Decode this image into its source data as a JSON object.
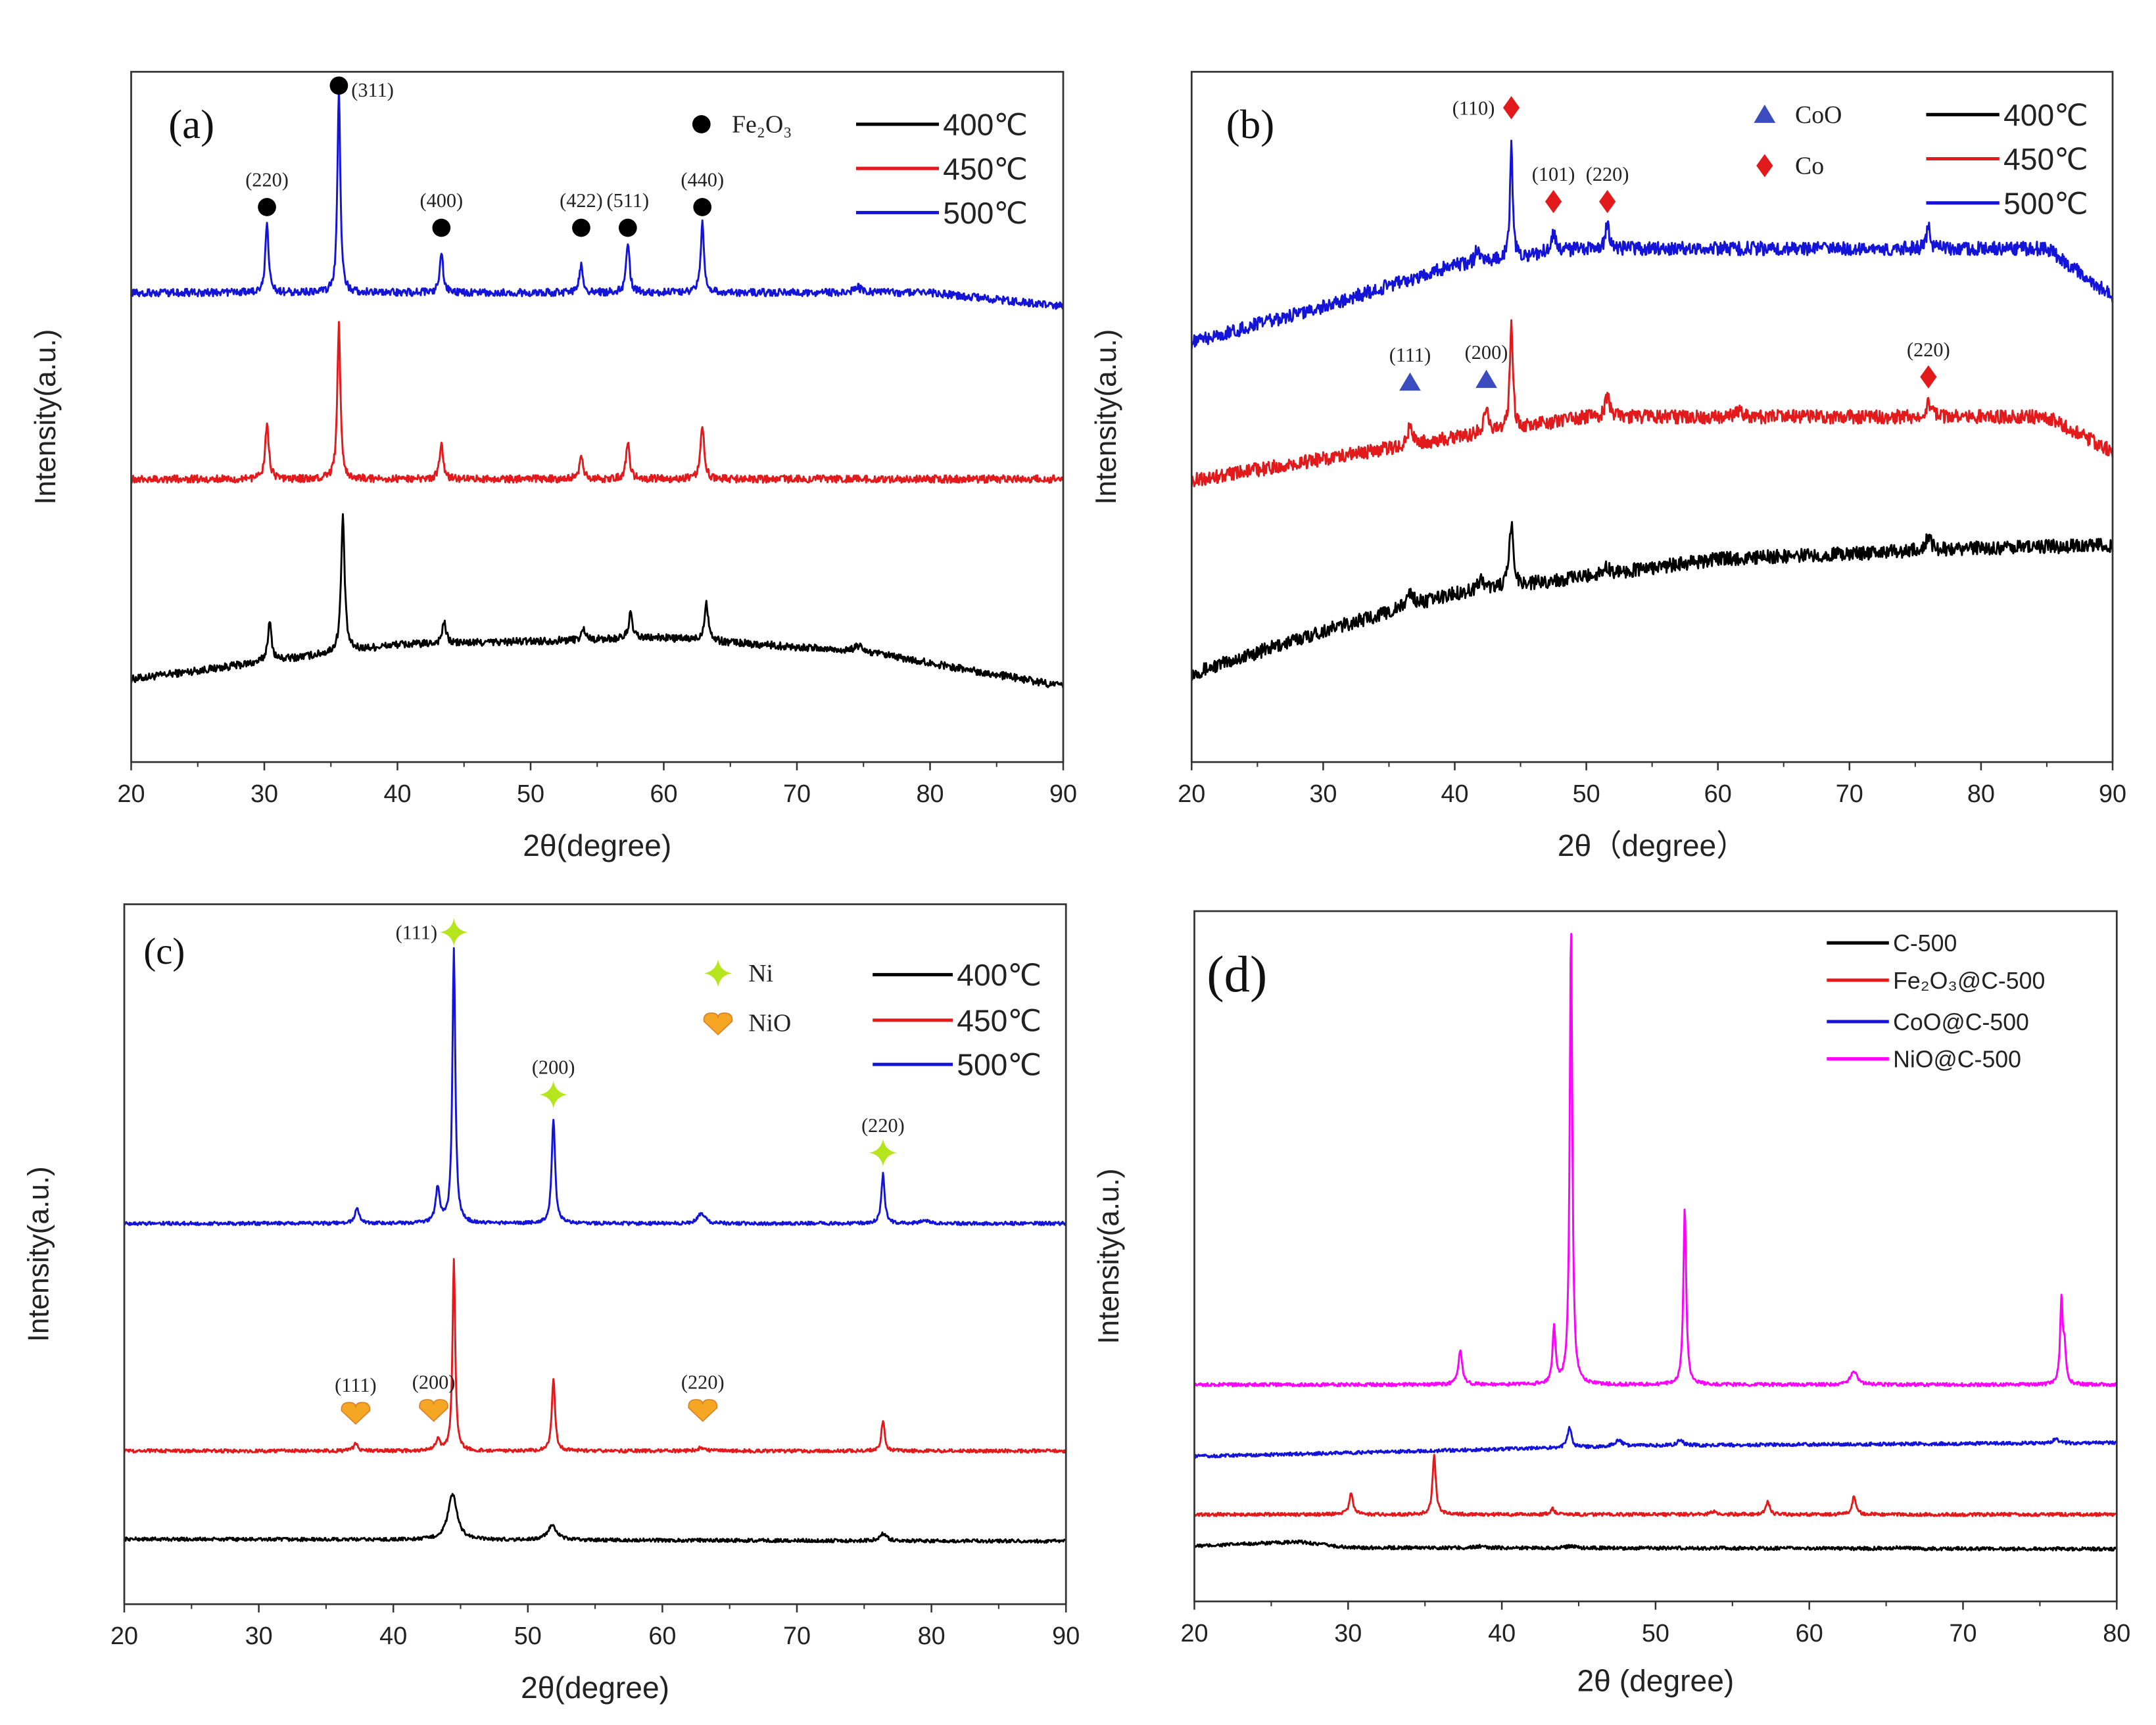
{
  "chart_data": [
    {
      "type": "line",
      "panel_label": "(a)",
      "xlabel": "2θ(degree)",
      "ylabel": "Intensity(a.u.)",
      "xlim": [
        20,
        90
      ],
      "ylim": [
        0,
        100
      ],
      "xticks": [
        20,
        30,
        40,
        50,
        60,
        70,
        80,
        90
      ],
      "legend_position": "top-right",
      "phase_legend": [
        {
          "symbol": "dot",
          "color": "#000000",
          "label": "Fe₂O₃"
        }
      ],
      "series": [
        {
          "name": "400℃",
          "color": "#000000",
          "baseline": [
            [
              20,
              12
            ],
            [
              40,
              17
            ],
            [
              60,
              18
            ],
            [
              75,
              16
            ],
            [
              90,
              11
            ]
          ],
          "peaks": [
            [
              30.4,
              5.5,
              0.18
            ],
            [
              35.9,
              19.5,
              0.16
            ],
            [
              43.5,
              3,
              0.18
            ],
            [
              54,
              1.5,
              0.2
            ],
            [
              57.5,
              3.5,
              0.18
            ],
            [
              63.2,
              5.5,
              0.18
            ],
            [
              74.6,
              0.8,
              0.3
            ]
          ]
        },
        {
          "name": "450℃",
          "color": "#e31a1c",
          "baseline": [
            [
              20,
              41
            ],
            [
              90,
              41
            ]
          ],
          "peaks": [
            [
              30.2,
              8,
              0.16
            ],
            [
              35.6,
              22.5,
              0.14
            ],
            [
              43.3,
              5,
              0.16
            ],
            [
              53.8,
              3,
              0.18
            ],
            [
              57.3,
              5.5,
              0.16
            ],
            [
              62.9,
              8,
              0.16
            ]
          ]
        },
        {
          "name": "500℃",
          "color": "#1414d8",
          "baseline": [
            [
              20,
              68
            ],
            [
              80,
              68
            ],
            [
              90,
              66
            ]
          ],
          "peaks": [
            [
              30.2,
              10,
              0.15
            ],
            [
              35.6,
              29,
              0.13
            ],
            [
              43.3,
              6,
              0.15
            ],
            [
              53.8,
              4,
              0.16
            ],
            [
              57.3,
              7.5,
              0.15
            ],
            [
              62.9,
              10,
              0.15
            ],
            [
              74.5,
              1,
              0.3
            ]
          ]
        }
      ],
      "annotations": [
        {
          "label": "(220)",
          "symbol": "dot",
          "color": "#000000",
          "x": 30.2,
          "y": 80.4
        },
        {
          "label": "(311)",
          "symbol": "dot",
          "color": "#000000",
          "x": 35.6,
          "y": 98,
          "label_side": "right"
        },
        {
          "label": "(400)",
          "symbol": "dot",
          "color": "#000000",
          "x": 43.3,
          "y": 77.4
        },
        {
          "label": "(422)",
          "symbol": "dot",
          "color": "#000000",
          "x": 53.8,
          "y": 77.4
        },
        {
          "label": "(511)",
          "symbol": "dot",
          "color": "#000000",
          "x": 57.3,
          "y": 77.4
        },
        {
          "label": "(440)",
          "symbol": "dot",
          "color": "#000000",
          "x": 62.9,
          "y": 80.4
        }
      ]
    },
    {
      "type": "line",
      "panel_label": "(b)",
      "xlabel": "2θ（degree）",
      "ylabel": "Intensity(a.u.)",
      "xlim": [
        20,
        90
      ],
      "ylim": [
        0,
        100
      ],
      "xticks": [
        20,
        30,
        40,
        50,
        60,
        70,
        80,
        90
      ],
      "legend_position": "top-right",
      "phase_legend": [
        {
          "symbol": "triangle",
          "color": "#3b4cc0",
          "label": "CoO"
        },
        {
          "symbol": "diamond",
          "color": "#e31a1c",
          "label": "Co"
        }
      ],
      "series": [
        {
          "name": "400℃",
          "color": "#000000",
          "baseline": [
            [
              20,
              12.8
            ],
            [
              30,
              19
            ],
            [
              40,
              24.4
            ],
            [
              60,
              29.4
            ],
            [
              80,
              31
            ],
            [
              90,
              31.4
            ]
          ],
          "peaks": [
            [
              36.6,
              2,
              0.3
            ],
            [
              42,
              1.5,
              0.3
            ],
            [
              44.3,
              9,
              0.18
            ],
            [
              51.5,
              1,
              0.3
            ],
            [
              76,
              2,
              0.25
            ]
          ]
        },
        {
          "name": "450℃",
          "color": "#e31a1c",
          "baseline": [
            [
              20,
              40.8
            ],
            [
              40,
              47
            ],
            [
              50,
              50
            ],
            [
              85,
              50
            ],
            [
              90,
              45
            ]
          ],
          "peaks": [
            [
              36.6,
              3,
              0.2
            ],
            [
              42.4,
              4,
              0.2
            ],
            [
              44.3,
              16,
              0.13
            ],
            [
              51.6,
              3,
              0.2
            ],
            [
              61.5,
              1,
              0.3
            ],
            [
              76,
              2,
              0.25
            ]
          ]
        },
        {
          "name": "500℃",
          "color": "#1414d8",
          "baseline": [
            [
              20,
              60.8
            ],
            [
              30,
              66
            ],
            [
              40,
              72
            ],
            [
              50,
              74.4
            ],
            [
              85,
              74.4
            ],
            [
              90,
              67.4
            ]
          ],
          "peaks": [
            [
              41.7,
              2,
              0.15
            ],
            [
              44.3,
              17,
              0.12
            ],
            [
              47.5,
              2.5,
              0.3
            ],
            [
              51.6,
              4,
              0.15
            ],
            [
              76,
              3.5,
              0.15
            ]
          ]
        }
      ],
      "annotations": [
        {
          "label": "(110)",
          "symbol": "diamond",
          "color": "#e31a1c",
          "x": 44.3,
          "y": 94.8,
          "label_side": "left"
        },
        {
          "label": "(101)",
          "symbol": "diamond",
          "color": "#e31a1c",
          "x": 47.5,
          "y": 81.2
        },
        {
          "label": "(220)",
          "symbol": "diamond",
          "color": "#e31a1c",
          "x": 51.6,
          "y": 81.2
        },
        {
          "label": "(111)",
          "symbol": "triangle",
          "color": "#3b4cc0",
          "x": 36.6,
          "y": 55
        },
        {
          "label": "(200)",
          "symbol": "triangle",
          "color": "#3b4cc0",
          "x": 42.4,
          "y": 55.4
        },
        {
          "label": "(220)",
          "symbol": "diamond",
          "color": "#e31a1c",
          "x": 76,
          "y": 55.8
        }
      ]
    },
    {
      "type": "line",
      "panel_label": "(c)",
      "xlabel": "2θ(degree)",
      "ylabel": "Intensity(a.u.)",
      "xlim": [
        20,
        90
      ],
      "ylim": [
        0,
        100
      ],
      "xticks": [
        20,
        30,
        40,
        50,
        60,
        70,
        80,
        90
      ],
      "legend_position": "top-right",
      "phase_legend": [
        {
          "symbol": "star",
          "color": "#b5e61d",
          "label": "Ni"
        },
        {
          "symbol": "heart",
          "color": "#f5a623",
          "label": "NiO"
        }
      ],
      "series": [
        {
          "name": "400℃",
          "color": "#000000",
          "baseline": [
            [
              20,
              9.3
            ],
            [
              90,
              9.0
            ]
          ],
          "peaks": [
            [
              44.4,
              6.5,
              0.4
            ],
            [
              51.8,
              2,
              0.4
            ],
            [
              76.4,
              1,
              0.3
            ]
          ]
        },
        {
          "name": "450℃",
          "color": "#e31a1c",
          "baseline": [
            [
              20,
              21.9
            ],
            [
              90,
              21.9
            ]
          ],
          "peaks": [
            [
              37.2,
              1,
              0.2
            ],
            [
              43.3,
              1.5,
              0.2
            ],
            [
              44.5,
              27.4,
              0.12
            ],
            [
              51.9,
              10.5,
              0.14
            ],
            [
              62.9,
              0.5,
              0.3
            ],
            [
              76.4,
              4.5,
              0.14
            ]
          ]
        },
        {
          "name": "500℃",
          "color": "#1414d8",
          "baseline": [
            [
              20,
              54.4
            ],
            [
              90,
              54.4
            ]
          ],
          "peaks": [
            [
              37.3,
              2,
              0.2
            ],
            [
              43.3,
              5,
              0.18
            ],
            [
              44.5,
              39,
              0.13
            ],
            [
              51.9,
              15,
              0.15
            ],
            [
              62.9,
              1.5,
              0.3
            ],
            [
              76.4,
              7,
              0.15
            ],
            [
              79.5,
              0.5,
              0.3
            ]
          ]
        }
      ],
      "annotations": [
        {
          "label": "(111)",
          "symbol": "star",
          "color": "#b5e61d",
          "x": 44.5,
          "y": 96,
          "label_side": "left"
        },
        {
          "label": "(200)",
          "symbol": "star",
          "color": "#b5e61d",
          "x": 51.9,
          "y": 72.8
        },
        {
          "label": "(220)",
          "symbol": "star",
          "color": "#b5e61d",
          "x": 76.4,
          "y": 64.5
        },
        {
          "label": "(111)",
          "symbol": "heart",
          "color": "#f5a623",
          "x": 37.2,
          "y": 27.4
        },
        {
          "label": "(200)",
          "symbol": "heart",
          "color": "#f5a623",
          "x": 43.0,
          "y": 27.8
        },
        {
          "label": "(220)",
          "symbol": "heart",
          "color": "#f5a623",
          "x": 63.0,
          "y": 27.8
        }
      ]
    },
    {
      "type": "line",
      "panel_label": "(d)",
      "xlabel": "2θ (degree)",
      "ylabel": "Intensity(a.u.)",
      "xlim": [
        20,
        80
      ],
      "ylim": [
        0,
        100
      ],
      "xticks": [
        20,
        30,
        40,
        50,
        60,
        70,
        80
      ],
      "legend_position": "top-right",
      "phase_legend": [],
      "series": [
        {
          "name": "C-500",
          "color": "#000000",
          "baseline": [
            [
              20,
              8
            ],
            [
              24,
              8.4
            ],
            [
              27,
              8.6
            ],
            [
              30,
              7.8
            ],
            [
              80,
              7.6
            ]
          ],
          "peaks": [
            [
              44.5,
              0.3,
              0.3
            ],
            [
              38.5,
              0.2,
              0.3
            ],
            [
              65.8,
              0.2,
              0.3
            ]
          ]
        },
        {
          "name": "Fe₂O₃@C-500",
          "color": "#e31a1c",
          "baseline": [
            [
              20,
              12.6
            ],
            [
              80,
              12.6
            ]
          ],
          "peaks": [
            [
              30.2,
              3,
              0.15
            ],
            [
              35.6,
              8.4,
              0.13
            ],
            [
              43.3,
              0.8,
              0.15
            ],
            [
              53.8,
              0.5,
              0.2
            ],
            [
              57.3,
              1.8,
              0.15
            ],
            [
              62.9,
              2.5,
              0.15
            ]
          ]
        },
        {
          "name": "CoO@C-500",
          "color": "#1414d8",
          "baseline": [
            [
              20,
              21
            ],
            [
              50,
              22.6
            ],
            [
              80,
              23
            ]
          ],
          "peaks": [
            [
              44.4,
              3,
              0.15
            ],
            [
              47.6,
              0.8,
              0.3
            ],
            [
              51.6,
              0.8,
              0.2
            ],
            [
              76,
              0.6,
              0.2
            ]
          ]
        },
        {
          "name": "NiO@C-500",
          "color": "#ff00ff",
          "baseline": [
            [
              20,
              31.4
            ],
            [
              80,
              31.4
            ]
          ],
          "peaks": [
            [
              37.3,
              5,
              0.15
            ],
            [
              43.4,
              8,
              0.12
            ],
            [
              44.5,
              66.6,
              0.1
            ],
            [
              51.9,
              25.6,
              0.11
            ],
            [
              62.9,
              2,
              0.25
            ],
            [
              76.4,
              12,
              0.1
            ],
            [
              76.6,
              5,
              0.1
            ]
          ]
        }
      ],
      "annotations": []
    }
  ]
}
